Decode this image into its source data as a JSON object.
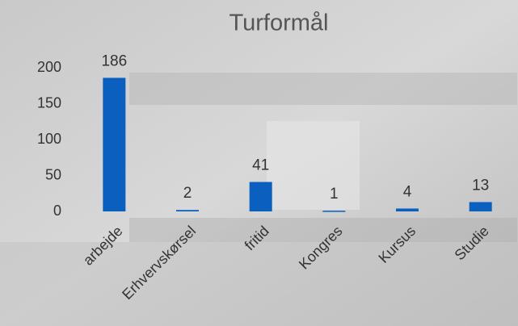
{
  "chart_data": {
    "type": "bar",
    "title": "Turformål",
    "categories": [
      "arbejde",
      "Erhvervskørsel",
      "fritid",
      "Kongres",
      "Kursus",
      "Studie"
    ],
    "values": [
      186,
      2,
      41,
      1,
      4,
      13
    ],
    "color": "#0a5fbf",
    "ylim": [
      0,
      200
    ],
    "yticks": [
      0,
      50,
      100,
      150,
      200
    ],
    "grid": false
  }
}
